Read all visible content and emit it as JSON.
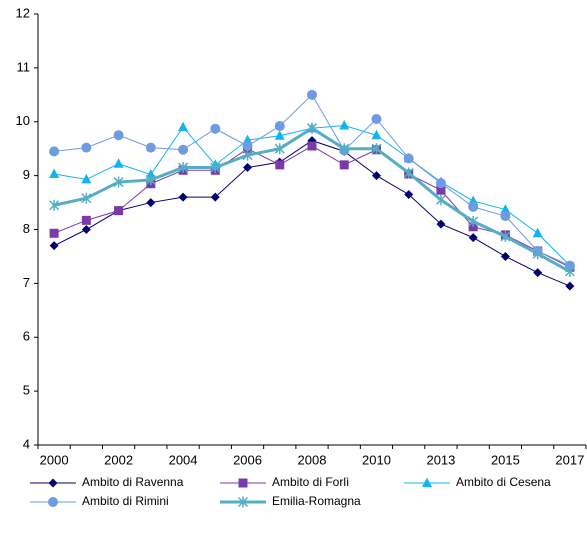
{
  "chart_data": {
    "type": "line",
    "categories": [
      "2000",
      null,
      "2002",
      null,
      "2004",
      null,
      "2006",
      null,
      "2008",
      null,
      "2010",
      null,
      "2013",
      null,
      "2015",
      null,
      "2017"
    ],
    "ylim": [
      4,
      12
    ],
    "yticks": [
      4,
      5,
      6,
      7,
      8,
      9,
      10,
      11,
      12
    ],
    "grid": false,
    "series": [
      {
        "name": "Ambito di Ravenna",
        "color": "#00006e",
        "marker": "diamond",
        "width": 1,
        "values": [
          7.7,
          8.0,
          8.35,
          8.5,
          8.6,
          8.6,
          9.15,
          9.25,
          9.65,
          9.45,
          9.0,
          8.65,
          8.1,
          7.85,
          7.5,
          7.2,
          6.95
        ]
      },
      {
        "name": "Ambito di Forlì",
        "color": "#7a3aa8",
        "marker": "square",
        "width": 1,
        "values": [
          7.93,
          8.17,
          8.35,
          8.85,
          9.1,
          9.1,
          9.5,
          9.2,
          9.55,
          9.2,
          9.48,
          9.03,
          8.73,
          8.05,
          7.9,
          7.6,
          7.3
        ]
      },
      {
        "name": "Ambito di Cesena",
        "color": "#12b4f0",
        "marker": "triangle",
        "width": 1,
        "values": [
          9.03,
          8.93,
          9.22,
          9.02,
          9.9,
          9.2,
          9.66,
          9.74,
          9.88,
          9.93,
          9.75,
          9.32,
          8.88,
          8.53,
          8.37,
          7.93,
          7.33
        ]
      },
      {
        "name": "Ambito di Rimini",
        "color": "#6f9be0",
        "marker": "circle",
        "width": 1,
        "values": [
          9.45,
          9.52,
          9.75,
          9.52,
          9.48,
          9.87,
          9.55,
          9.92,
          10.5,
          9.47,
          10.05,
          9.32,
          8.86,
          8.42,
          8.25,
          7.6,
          7.33
        ]
      },
      {
        "name": "Emilia-Romagna",
        "color": "#55aec6",
        "marker": "star",
        "width": 3,
        "values": [
          8.45,
          8.58,
          8.88,
          8.92,
          9.15,
          9.15,
          9.38,
          9.5,
          9.88,
          9.5,
          9.5,
          9.05,
          8.55,
          8.15,
          7.87,
          7.55,
          7.22
        ]
      }
    ]
  }
}
